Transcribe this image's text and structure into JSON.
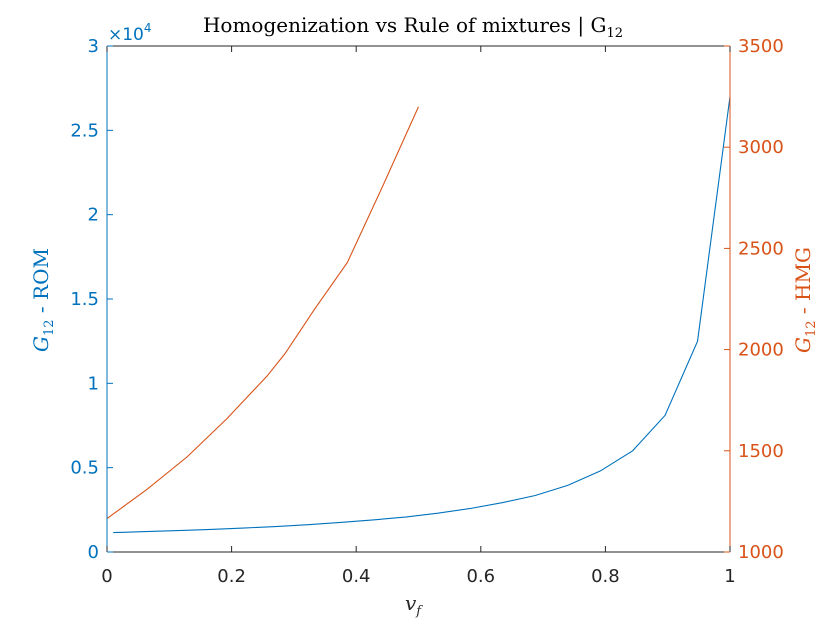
{
  "chart_data": {
    "type": "line",
    "title": "Homogenization vs Rule of mixtures | G",
    "title_subscript": "12",
    "xlabel": "v",
    "xlabel_subscript": "f",
    "ylabel_left": "G",
    "ylabel_left_subscript": "12",
    "ylabel_left_suffix": " - ROM",
    "ylabel_right": "G",
    "ylabel_right_subscript": "12",
    "ylabel_right_suffix": " - HMG",
    "xlim": [
      0,
      1
    ],
    "ylim_left": [
      0,
      30000
    ],
    "ylim_right": [
      1000,
      3500
    ],
    "x_ticks": [
      0,
      0.2,
      0.4,
      0.6,
      0.8,
      1
    ],
    "x_tick_labels": [
      "0",
      "0.2",
      "0.4",
      "0.6",
      "0.8",
      "1"
    ],
    "y_left_ticks": [
      0,
      5000,
      10000,
      15000,
      20000,
      25000,
      30000
    ],
    "y_left_tick_labels": [
      "0",
      "0.5",
      "1",
      "1.5",
      "2",
      "2.5",
      "3"
    ],
    "y_left_exponent_base": "×10",
    "y_left_exponent_power": "4",
    "y_right_ticks": [
      1000,
      1500,
      2000,
      2500,
      3000,
      3500
    ],
    "y_right_tick_labels": [
      "1000",
      "1500",
      "2000",
      "2500",
      "3000",
      "3500"
    ],
    "grid": false,
    "series": [
      {
        "axis": "left",
        "color": "#0072BD",
        "points": [
          [
            0.01,
            1150
          ],
          [
            0.0621,
            1210
          ],
          [
            0.1142,
            1270
          ],
          [
            0.1663,
            1340
          ],
          [
            0.2184,
            1420
          ],
          [
            0.2705,
            1510
          ],
          [
            0.3226,
            1620
          ],
          [
            0.3747,
            1750
          ],
          [
            0.4268,
            1900
          ],
          [
            0.4789,
            2070
          ],
          [
            0.531,
            2300
          ],
          [
            0.5831,
            2580
          ],
          [
            0.6353,
            2930
          ],
          [
            0.6874,
            3350
          ],
          [
            0.7395,
            3950
          ],
          [
            0.7916,
            4800
          ],
          [
            0.8437,
            6000
          ],
          [
            0.8958,
            8100
          ],
          [
            0.9479,
            12500
          ],
          [
            1.0,
            27000
          ]
        ]
      },
      {
        "axis": "right",
        "color": "#D95319",
        "points": [
          [
            0.0,
            1165
          ],
          [
            0.0643,
            1310
          ],
          [
            0.1286,
            1470
          ],
          [
            0.1929,
            1660
          ],
          [
            0.2571,
            1870
          ],
          [
            0.2857,
            1980
          ],
          [
            0.3333,
            2200
          ],
          [
            0.3857,
            2430
          ],
          [
            0.4429,
            2810
          ],
          [
            0.5,
            3200
          ]
        ]
      }
    ]
  }
}
